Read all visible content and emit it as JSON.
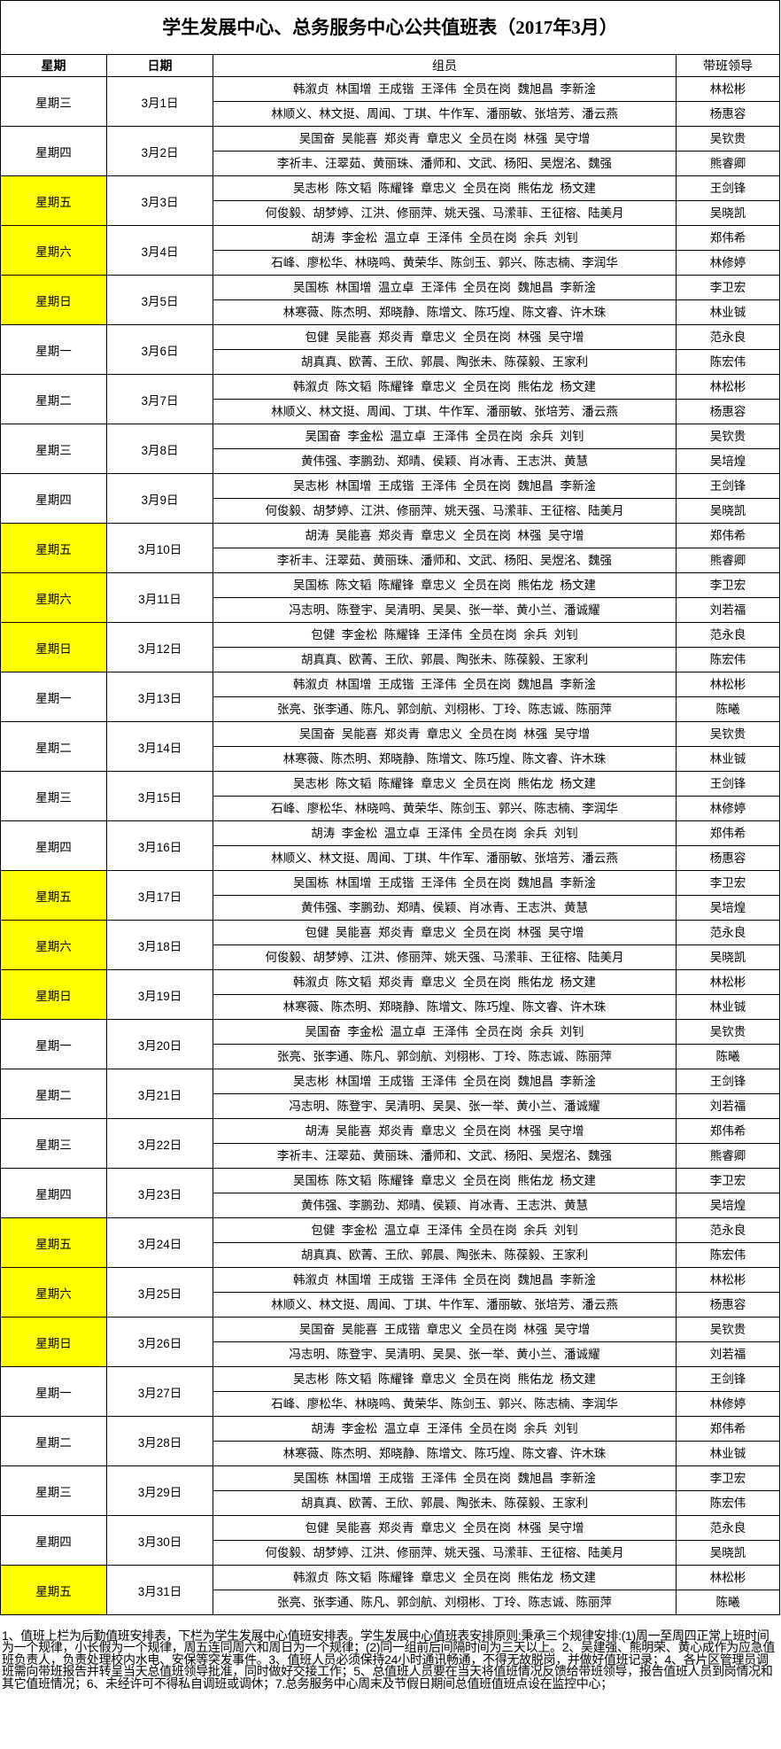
{
  "title": "学生发展中心、总务服务中心公共值班表（2017年3月）",
  "headers": {
    "weekday": "星期",
    "date": "日期",
    "members": "组员",
    "leader": "带班领导"
  },
  "colors": {
    "weekend_highlight": "#FFFF00",
    "border": "#000000"
  },
  "days": [
    {
      "weekday": "星期三",
      "date": "3月1日",
      "weekend": false,
      "groups": [
        {
          "members": "韩溆贞  林国增  王成锴  王泽伟  全员在岗  魏旭昌  李新淦",
          "leader": "林松彬"
        },
        {
          "members": "林顺义、林文挺、周闻、丁琪、牛作军、潘丽敏、张培芳、潘云燕",
          "leader": "杨惠容"
        }
      ]
    },
    {
      "weekday": "星期四",
      "date": "3月2日",
      "weekend": false,
      "groups": [
        {
          "members": "吴国奋  吴能喜  郑炎青  章忠义  全员在岗  林强  吴守增",
          "leader": "吴钦贵"
        },
        {
          "members": "李祈丰、汪翠茹、黄丽珠、潘师和、文武、杨阳、吴煜洺、魏强",
          "leader": "熊睿卿"
        }
      ]
    },
    {
      "weekday": "星期五",
      "date": "3月3日",
      "weekend": true,
      "groups": [
        {
          "members": "吴志彬  陈文韬  陈耀锋  章忠义  全员在岗  熊佑龙  杨文建",
          "leader": "王剑锋"
        },
        {
          "members": "何俊毅、胡梦婷、江洪、修丽萍、姚天强、马潆菲、王征榕、陆美月",
          "leader": "吴晓凯"
        }
      ]
    },
    {
      "weekday": "星期六",
      "date": "3月4日",
      "weekend": true,
      "groups": [
        {
          "members": "胡涛  李金松  温立卓  王泽伟  全员在岗  余兵  刘钊",
          "leader": "郑伟希"
        },
        {
          "members": "石峰、廖松华、林晓鸣、黄荣华、陈剑玉、郭兴、陈志楠、李润华",
          "leader": "林修婷"
        }
      ]
    },
    {
      "weekday": "星期日",
      "date": "3月5日",
      "weekend": true,
      "groups": [
        {
          "members": "吴国栋  林国增  温立卓  王泽伟  全员在岗  魏旭昌  李新淦",
          "leader": "李卫宏"
        },
        {
          "members": "林寒薇、陈杰明、郑晓静、陈增文、陈巧煌、陈文睿、许木珠",
          "leader": "林业铖"
        }
      ]
    },
    {
      "weekday": "星期一",
      "date": "3月6日",
      "weekend": false,
      "groups": [
        {
          "members": "包健  吴能喜  郑炎青  章忠义  全员在岗  林强  吴守增",
          "leader": "范永良"
        },
        {
          "members": "胡真真、欧菁、王欣、郭晨、陶张未、陈葆毅、王家利",
          "leader": "陈宏伟"
        }
      ]
    },
    {
      "weekday": "星期二",
      "date": "3月7日",
      "weekend": false,
      "groups": [
        {
          "members": "韩溆贞  陈文韬  陈耀锋  章忠义  全员在岗  熊佑龙  杨文建",
          "leader": "林松彬"
        },
        {
          "members": "林顺义、林文挺、周闻、丁琪、牛作军、潘丽敏、张培芳、潘云燕",
          "leader": "杨惠容"
        }
      ]
    },
    {
      "weekday": "星期三",
      "date": "3月8日",
      "weekend": false,
      "groups": [
        {
          "members": "吴国奋  李金松  温立卓  王泽伟  全员在岗  余兵  刘钊",
          "leader": "吴钦贵"
        },
        {
          "members": "黄伟强、李鹏劲、郑晴、侯颖、肖冰青、王志洪、黄慧",
          "leader": "吴培煌"
        }
      ]
    },
    {
      "weekday": "星期四",
      "date": "3月9日",
      "weekend": false,
      "groups": [
        {
          "members": "吴志彬  林国增  王成锴  王泽伟  全员在岗  魏旭昌  李新淦",
          "leader": "王剑锋"
        },
        {
          "members": "何俊毅、胡梦婷、江洪、修丽萍、姚天强、马潆菲、王征榕、陆美月",
          "leader": "吴晓凯"
        }
      ]
    },
    {
      "weekday": "星期五",
      "date": "3月10日",
      "weekend": true,
      "groups": [
        {
          "members": "胡涛  吴能喜  郑炎青  章忠义  全员在岗  林强  吴守增",
          "leader": "郑伟希"
        },
        {
          "members": "李祈丰、汪翠茹、黄丽珠、潘师和、文武、杨阳、吴煜洺、魏强",
          "leader": "熊睿卿"
        }
      ]
    },
    {
      "weekday": "星期六",
      "date": "3月11日",
      "weekend": true,
      "groups": [
        {
          "members": "吴国栋  陈文韬  陈耀锋  章忠义  全员在岗  熊佑龙  杨文建",
          "leader": "李卫宏"
        },
        {
          "members": "冯志明、陈登宇、吴清明、吴昊、张一举、黄小兰、潘诚耀",
          "leader": "刘若福"
        }
      ]
    },
    {
      "weekday": "星期日",
      "date": "3月12日",
      "weekend": true,
      "groups": [
        {
          "members": "包健  李金松  陈耀锋  王泽伟  全员在岗  余兵  刘钊",
          "leader": "范永良"
        },
        {
          "members": "胡真真、欧菁、王欣、郭晨、陶张未、陈葆毅、王家利",
          "leader": "陈宏伟"
        }
      ]
    },
    {
      "weekday": "星期一",
      "date": "3月13日",
      "weekend": false,
      "groups": [
        {
          "members": "韩溆贞  林国增  王成锴  王泽伟  全员在岗  魏旭昌  李新淦",
          "leader": "林松彬"
        },
        {
          "members": "张亮、张李通、陈凡、郭剑航、刘栩彬、丁玲、陈志诚、陈丽萍",
          "leader": "陈曦"
        }
      ]
    },
    {
      "weekday": "星期二",
      "date": "3月14日",
      "weekend": false,
      "groups": [
        {
          "members": "吴国奋  吴能喜  郑炎青  章忠义  全员在岗  林强  吴守增",
          "leader": "吴钦贵"
        },
        {
          "members": "林寒薇、陈杰明、郑晓静、陈增文、陈巧煌、陈文睿、许木珠",
          "leader": "林业铖"
        }
      ]
    },
    {
      "weekday": "星期三",
      "date": "3月15日",
      "weekend": false,
      "groups": [
        {
          "members": "吴志彬  陈文韬  陈耀锋  章忠义  全员在岗  熊佑龙  杨文建",
          "leader": "王剑锋"
        },
        {
          "members": "石峰、廖松华、林晓鸣、黄荣华、陈剑玉、郭兴、陈志楠、李润华",
          "leader": "林修婷"
        }
      ]
    },
    {
      "weekday": "星期四",
      "date": "3月16日",
      "weekend": false,
      "groups": [
        {
          "members": "胡涛  李金松  温立卓  王泽伟  全员在岗  余兵  刘钊",
          "leader": "郑伟希"
        },
        {
          "members": "林顺义、林文挺、周闻、丁琪、牛作军、潘丽敏、张培芳、潘云燕",
          "leader": "杨惠容"
        }
      ]
    },
    {
      "weekday": "星期五",
      "date": "3月17日",
      "weekend": true,
      "groups": [
        {
          "members": "吴国栋  林国增  王成锴  王泽伟  全员在岗  魏旭昌  李新淦",
          "leader": "李卫宏"
        },
        {
          "members": "黄伟强、李鹏劲、郑晴、侯颖、肖冰青、王志洪、黄慧",
          "leader": "吴培煌"
        }
      ]
    },
    {
      "weekday": "星期六",
      "date": "3月18日",
      "weekend": true,
      "groups": [
        {
          "members": "包健  吴能喜  郑炎青  章忠义  全员在岗  林强  吴守增",
          "leader": "范永良"
        },
        {
          "members": "何俊毅、胡梦婷、江洪、修丽萍、姚天强、马潆菲、王征榕、陆美月",
          "leader": "吴晓凯"
        }
      ]
    },
    {
      "weekday": "星期日",
      "date": "3月19日",
      "weekend": true,
      "groups": [
        {
          "members": "韩溆贞  陈文韬  郑炎青  章忠义  全员在岗  熊佑龙  杨文建",
          "leader": "林松彬"
        },
        {
          "members": "林寒薇、陈杰明、郑晓静、陈增文、陈巧煌、陈文睿、许木珠",
          "leader": "林业铖"
        }
      ]
    },
    {
      "weekday": "星期一",
      "date": "3月20日",
      "weekend": false,
      "groups": [
        {
          "members": "吴国奋  李金松  温立卓  王泽伟  全员在岗  余兵  刘钊",
          "leader": "吴钦贵"
        },
        {
          "members": "张亮、张李通、陈凡、郭剑航、刘栩彬、丁玲、陈志诚、陈丽萍",
          "leader": "陈曦"
        }
      ]
    },
    {
      "weekday": "星期二",
      "date": "3月21日",
      "weekend": false,
      "groups": [
        {
          "members": "吴志彬  林国增  王成锴  王泽伟  全员在岗  魏旭昌  李新淦",
          "leader": "王剑锋"
        },
        {
          "members": "冯志明、陈登宇、吴清明、吴昊、张一举、黄小兰、潘诚耀",
          "leader": "刘若福"
        }
      ]
    },
    {
      "weekday": "星期三",
      "date": "3月22日",
      "weekend": false,
      "groups": [
        {
          "members": "胡涛  吴能喜  郑炎青  章忠义  全员在岗  林强  吴守增",
          "leader": "郑伟希"
        },
        {
          "members": "李祈丰、汪翠茹、黄丽珠、潘师和、文武、杨阳、吴煜洺、魏强",
          "leader": "熊睿卿"
        }
      ]
    },
    {
      "weekday": "星期四",
      "date": "3月23日",
      "weekend": false,
      "groups": [
        {
          "members": "吴国栋  陈文韬  陈耀锋  章忠义  全员在岗  熊佑龙  杨文建",
          "leader": "李卫宏"
        },
        {
          "members": "黄伟强、李鹏劲、郑晴、侯颖、肖冰青、王志洪、黄慧",
          "leader": "吴培煌"
        }
      ]
    },
    {
      "weekday": "星期五",
      "date": "3月24日",
      "weekend": true,
      "groups": [
        {
          "members": "包健  李金松  温立卓  王泽伟  全员在岗  余兵  刘钊",
          "leader": "范永良"
        },
        {
          "members": "胡真真、欧菁、王欣、郭晨、陶张未、陈葆毅、王家利",
          "leader": "陈宏伟"
        }
      ]
    },
    {
      "weekday": "星期六",
      "date": "3月25日",
      "weekend": true,
      "groups": [
        {
          "members": "韩溆贞  林国增  王成锴  王泽伟  全员在岗  魏旭昌  李新淦",
          "leader": "林松彬"
        },
        {
          "members": "林顺义、林文挺、周闻、丁琪、牛作军、潘丽敏、张培芳、潘云燕",
          "leader": "杨惠容"
        }
      ]
    },
    {
      "weekday": "星期日",
      "date": "3月26日",
      "weekend": true,
      "groups": [
        {
          "members": "吴国奋  吴能喜  王成锴  章忠义  全员在岗  林强  吴守增",
          "leader": "吴钦贵"
        },
        {
          "members": "冯志明、陈登宇、吴清明、吴昊、张一举、黄小兰、潘诚耀",
          "leader": "刘若福"
        }
      ]
    },
    {
      "weekday": "星期一",
      "date": "3月27日",
      "weekend": false,
      "groups": [
        {
          "members": "吴志彬  陈文韬  陈耀锋  章忠义  全员在岗  熊佑龙  杨文建",
          "leader": "王剑锋"
        },
        {
          "members": "石峰、廖松华、林晓鸣、黄荣华、陈剑玉、郭兴、陈志楠、李润华",
          "leader": "林修婷"
        }
      ]
    },
    {
      "weekday": "星期二",
      "date": "3月28日",
      "weekend": false,
      "groups": [
        {
          "members": "胡涛  李金松  温立卓  王泽伟  全员在岗  余兵  刘钊",
          "leader": "郑伟希"
        },
        {
          "members": "林寒薇、陈杰明、郑晓静、陈增文、陈巧煌、陈文睿、许木珠",
          "leader": "林业铖"
        }
      ]
    },
    {
      "weekday": "星期三",
      "date": "3月29日",
      "weekend": false,
      "groups": [
        {
          "members": "吴国栋  林国增  王成锴  王泽伟  全员在岗  魏旭昌  李新淦",
          "leader": "李卫宏"
        },
        {
          "members": "胡真真、欧菁、王欣、郭晨、陶张未、陈葆毅、王家利",
          "leader": "陈宏伟"
        }
      ]
    },
    {
      "weekday": "星期四",
      "date": "3月30日",
      "weekend": false,
      "groups": [
        {
          "members": "包健  吴能喜  郑炎青  章忠义  全员在岗  林强  吴守增",
          "leader": "范永良"
        },
        {
          "members": "何俊毅、胡梦婷、江洪、修丽萍、姚天强、马潆菲、王征榕、陆美月",
          "leader": "吴晓凯"
        }
      ]
    },
    {
      "weekday": "星期五",
      "date": "3月31日",
      "weekend": true,
      "groups": [
        {
          "members": "韩溆贞  陈文韬  陈耀锋  章忠义  全员在岗  熊佑龙  杨文建",
          "leader": "林松彬"
        },
        {
          "members": "张亮、张李通、陈凡、郭剑航、刘栩彬、丁玲、陈志诚、陈丽萍",
          "leader": "陈曦"
        }
      ]
    }
  ],
  "note": "1、值班上栏为后勤值班安排表，下栏为学生发展中心值班安排表。学生发展中心值班表安排原则:秉承三个规律安排:(1)周一至周四正常上班时间为一个规律，小长假为一个规律，周五连同周六和周日为一个规律；(2)同一组前后间隔时间为三天以上。2、吴建强、熊明荣、黄心成作为应急值班负责人，负责处理校内水电、安保等突发事件。3、值班人员必须保持24小时通讯畅通，不得无故脱岗，并做好值班记录；4、各片区管理员调班需向带班报告并转呈当天总值班领导批准，同时做好交接工作；5、总值班人员要在当天将值班情况反馈给带班领导，报告值班人员到岗情况和其它值班情况；6、未经许可不得私自调班或调休；7.总务服务中心周末及节假日期间总值班值班点设在监控中心；"
}
